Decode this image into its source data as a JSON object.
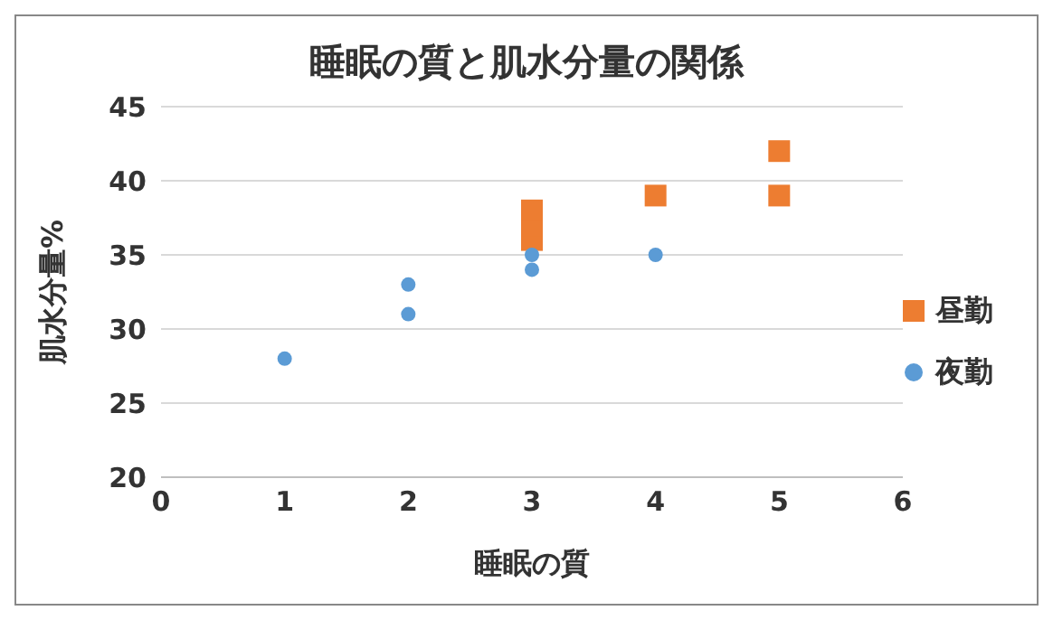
{
  "chart_data": {
    "type": "scatter",
    "title": "睡眠の質と肌水分量の関係",
    "xlabel": "睡眠の質",
    "ylabel": "肌水分量%",
    "xlim": [
      0,
      6
    ],
    "xticks": [
      0,
      1,
      2,
      3,
      4,
      5,
      6
    ],
    "ylim": [
      20,
      45
    ],
    "yticks": [
      20,
      25,
      30,
      35,
      40,
      45
    ],
    "grid": "y",
    "legend": "right",
    "series": [
      {
        "name": "昼勤",
        "color": "#ed7d31",
        "marker": "square",
        "x": [
          3,
          3,
          3,
          4,
          5,
          5
        ],
        "values": [
          36,
          37,
          38,
          39,
          39,
          42
        ]
      },
      {
        "name": "夜勤",
        "color": "#5b9bd5",
        "marker": "circle",
        "x": [
          1,
          2,
          2,
          3,
          3,
          4
        ],
        "values": [
          28,
          31,
          33,
          34,
          35,
          35
        ]
      }
    ]
  }
}
